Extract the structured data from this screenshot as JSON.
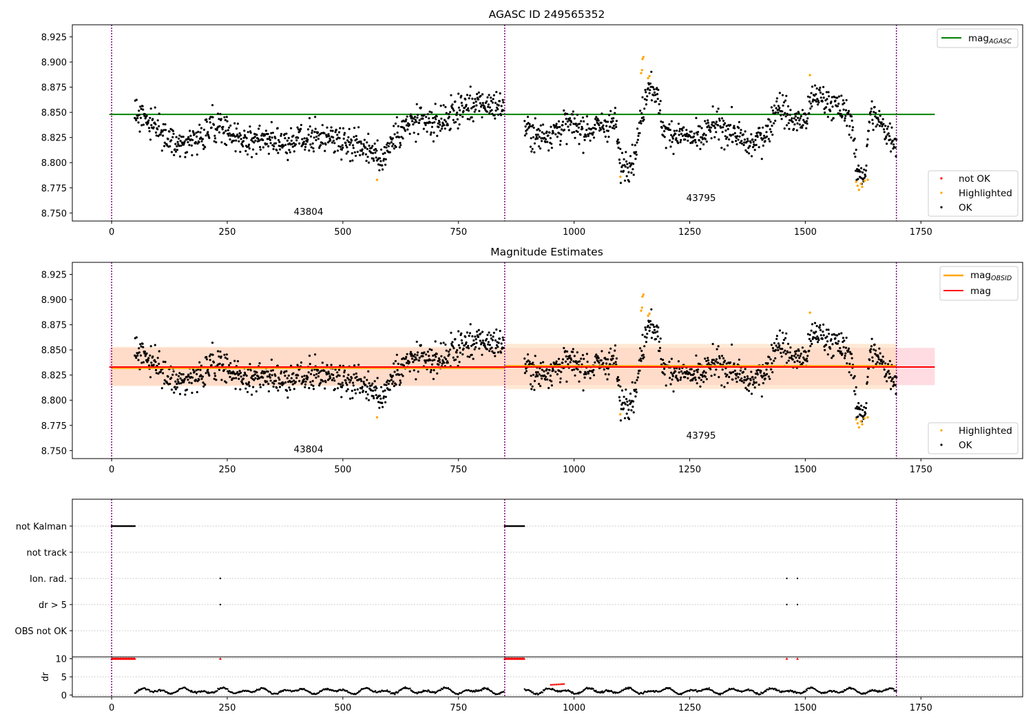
{
  "chart_data": [
    {
      "type": "scatter",
      "title": "AGASC ID 249565352",
      "xlabel": "",
      "ylabel": "",
      "xlim": [
        -85,
        1970
      ],
      "ylim": [
        8.742,
        8.937
      ],
      "xticks": [
        0,
        250,
        500,
        750,
        1000,
        1250,
        1500,
        1750
      ],
      "yticks": [
        "8.750",
        "8.775",
        "8.800",
        "8.825",
        "8.850",
        "8.875",
        "8.900",
        "8.925"
      ],
      "obsid_boundaries": [
        0,
        850,
        1697
      ],
      "obsid_annotations": [
        {
          "text": "43804",
          "x": 425,
          "y": 8.751
        },
        {
          "text": "43795",
          "x": 1265,
          "y": 8.764
        }
      ],
      "reference_lines": [
        {
          "name": "mag",
          "subscript": "AGASC",
          "y": 8.848,
          "x_range": [
            -5,
            1780
          ],
          "color": "#008000"
        }
      ],
      "series": [
        {
          "name": "not OK",
          "color": "#ff0000",
          "values_description": ""
        },
        {
          "name": "Highlighted",
          "color": "#ffa500",
          "points": [
            [
              574,
              8.783
            ],
            [
              1100,
              8.786
            ],
            [
              1145,
              8.889
            ],
            [
              1147,
              8.892
            ],
            [
              1148,
              8.903
            ],
            [
              1150,
              8.905
            ],
            [
              1160,
              8.884
            ],
            [
              1163,
              8.886
            ],
            [
              1510,
              8.887
            ],
            [
              1610,
              8.781
            ],
            [
              1613,
              8.777
            ],
            [
              1616,
              8.773
            ],
            [
              1620,
              8.779
            ],
            [
              1623,
              8.776
            ],
            [
              1628,
              8.782
            ],
            [
              1635,
              8.783
            ]
          ]
        },
        {
          "name": "OK",
          "color": "#000000",
          "segments": [
            {
              "x_start": 50,
              "x_end": 848,
              "anchors": [
                [
                  50,
                  8.848
                ],
                [
                  70,
                  8.848
                ],
                [
                  90,
                  8.838
                ],
                [
                  110,
                  8.825
                ],
                [
                  150,
                  8.818
                ],
                [
                  200,
                  8.827
                ],
                [
                  230,
                  8.842
                ],
                [
                  260,
                  8.828
                ],
                [
                  300,
                  8.822
                ],
                [
                  340,
                  8.825
                ],
                [
                  380,
                  8.82
                ],
                [
                  420,
                  8.824
                ],
                [
                  460,
                  8.826
                ],
                [
                  500,
                  8.823
                ],
                [
                  540,
                  8.818
                ],
                [
                  565,
                  8.812
                ],
                [
                  580,
                  8.8
                ],
                [
                  600,
                  8.818
                ],
                [
                  625,
                  8.832
                ],
                [
                  650,
                  8.84
                ],
                [
                  700,
                  8.838
                ],
                [
                  730,
                  8.846
                ],
                [
                  760,
                  8.855
                ],
                [
                  800,
                  8.858
                ],
                [
                  848,
                  8.856
                ]
              ]
            },
            {
              "x_start": 893,
              "x_end": 1697,
              "anchors": [
                [
                  893,
                  8.835
                ],
                [
                  920,
                  8.825
                ],
                [
                  950,
                  8.83
                ],
                [
                  990,
                  8.838
                ],
                [
                  1030,
                  8.832
                ],
                [
                  1070,
                  8.838
                ],
                [
                  1090,
                  8.84
                ],
                [
                  1100,
                  8.796
                ],
                [
                  1130,
                  8.805
                ],
                [
                  1148,
                  8.85
                ],
                [
                  1160,
                  8.88
                ],
                [
                  1175,
                  8.873
                ],
                [
                  1195,
                  8.83
                ],
                [
                  1230,
                  8.828
                ],
                [
                  1270,
                  8.822
                ],
                [
                  1300,
                  8.836
                ],
                [
                  1340,
                  8.832
                ],
                [
                  1380,
                  8.816
                ],
                [
                  1420,
                  8.832
                ],
                [
                  1440,
                  8.86
                ],
                [
                  1470,
                  8.842
                ],
                [
                  1500,
                  8.842
                ],
                [
                  1520,
                  8.868
                ],
                [
                  1560,
                  8.858
                ],
                [
                  1590,
                  8.848
                ],
                [
                  1602,
                  8.84
                ],
                [
                  1610,
                  8.79
                ],
                [
                  1630,
                  8.79
                ],
                [
                  1640,
                  8.85
                ],
                [
                  1660,
                  8.84
                ],
                [
                  1697,
                  8.82
                ]
              ]
            }
          ]
        }
      ],
      "legend": {
        "placement": "top-right and bottom-right",
        "entries_top": [
          "mag_AGASC"
        ],
        "entries_bottom": [
          "not OK",
          "Highlighted",
          "OK"
        ]
      }
    },
    {
      "type": "scatter",
      "title": "Magnitude Estimates",
      "xlabel": "",
      "ylabel": "",
      "xlim": [
        -85,
        1970
      ],
      "ylim": [
        8.742,
        8.937
      ],
      "xticks": [
        0,
        250,
        500,
        750,
        1000,
        1250,
        1500,
        1750
      ],
      "yticks": [
        "8.750",
        "8.775",
        "8.800",
        "8.825",
        "8.850",
        "8.875",
        "8.900",
        "8.925"
      ],
      "obsid_boundaries": [
        0,
        850,
        1697
      ],
      "obsid_annotations": [
        {
          "text": "43804",
          "x": 425,
          "y": 8.751
        },
        {
          "text": "43795",
          "x": 1265,
          "y": 8.764
        }
      ],
      "reference_lines": [
        {
          "name": "mag",
          "subscript": "OBSID",
          "segments": [
            {
              "x_range": [
                0,
                850
              ],
              "y": 8.832
            },
            {
              "x_range": [
                850,
                1697
              ],
              "y": 8.834
            }
          ],
          "color": "#ffa500",
          "band": [
            8.814,
            8.853
          ]
        },
        {
          "name": "mag",
          "subscript": "",
          "y": 8.833,
          "x_range": [
            -5,
            1780
          ],
          "color": "#ff0000",
          "band": [
            8.815,
            8.852
          ]
        }
      ],
      "series": [
        {
          "name": "Highlighted",
          "color": "#ffa500",
          "same_as_panel": 0
        },
        {
          "name": "OK",
          "color": "#000000",
          "same_as_panel": 0
        }
      ],
      "legend": {
        "placement": "top-right and bottom-right",
        "entries_top": [
          "mag_OBSID",
          "mag"
        ],
        "entries_bottom": [
          "Highlighted",
          "OK"
        ]
      }
    },
    {
      "type": "scatter",
      "title": "",
      "xlim": [
        -85,
        1970
      ],
      "xticks": [
        0,
        250,
        500,
        750,
        1000,
        1250,
        1500,
        1750
      ],
      "flag_rows": [
        "not Kalman",
        "not track",
        "Ion. rad.",
        "dr > 5",
        "OBS not OK"
      ],
      "flag_points": {
        "not Kalman": {
          "ranges": [
            [
              0,
              50
            ],
            [
              850,
              893
            ]
          ]
        },
        "not track": {
          "ranges": []
        },
        "Ion. rad.": {
          "x": [
            235,
            1460,
            1483
          ]
        },
        "dr > 5": {
          "x": [
            235,
            1460,
            1483
          ]
        }
      },
      "ylabel_dr": "dr",
      "dr_yticks": [
        "0",
        "5",
        "10"
      ],
      "dr_ylim": [
        -0.5,
        10.5
      ],
      "dr_clipped": {
        "color": "#ff0000",
        "y": 10,
        "ranges": [
          [
            0,
            50
          ],
          [
            850,
            893
          ]
        ],
        "x": [
          235,
          1460,
          1483
        ]
      },
      "dr_highlight": {
        "color": "#ff0000",
        "x_range": [
          950,
          980
        ],
        "y": 2.8
      }
    }
  ],
  "panel1": {
    "title": "AGASC ID 249565352",
    "legend_top": {
      "main": "mag",
      "sub": "AGASC"
    },
    "legend_bottom": [
      "not OK",
      "Highlighted",
      "OK"
    ],
    "obsid_a": "43804",
    "obsid_b": "43795"
  },
  "panel2": {
    "title": "Magnitude Estimates",
    "legend_top": [
      {
        "main": "mag",
        "sub": "OBSID"
      },
      {
        "main": "mag",
        "sub": ""
      }
    ],
    "legend_bottom": [
      "Highlighted",
      "OK"
    ],
    "obsid_a": "43804",
    "obsid_b": "43795"
  },
  "panel3": {
    "flag_labels": [
      "not Kalman",
      "not track",
      "Ion. rad.",
      "dr > 5",
      "OBS not OK"
    ],
    "dr_label": "dr"
  },
  "colors": {
    "green": "#008000",
    "orange": "#ffa500",
    "red": "#ff0000",
    "boundary": "#800080",
    "band_red": "#ffc0cb",
    "band_orange": "#ffdab9"
  }
}
